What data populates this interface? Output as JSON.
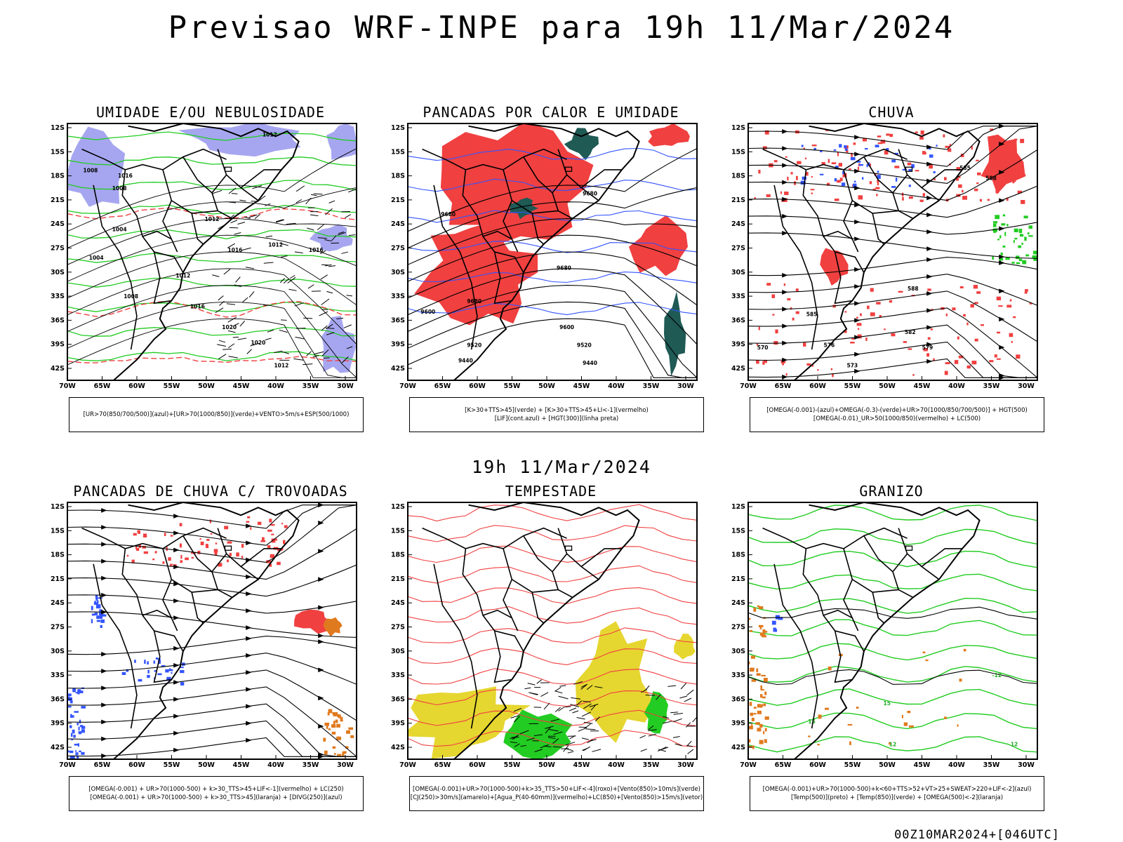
{
  "header": {
    "title": "Previsao WRF-INPE  para 19h 11/Mar/2024"
  },
  "mid_title": "19h 11/Mar/2024",
  "footer": "00Z10MAR2024+[046UTC]",
  "axes": {
    "lat_labels": [
      "12S",
      "15S",
      "18S",
      "21S",
      "24S",
      "27S",
      "30S",
      "33S",
      "36S",
      "39S",
      "42S"
    ],
    "lon_labels": [
      "70W",
      "65W",
      "60W",
      "55W",
      "50W",
      "45W",
      "40W",
      "35W",
      "30W"
    ]
  },
  "colors": {
    "red": "#f04040",
    "green": "#22cc22",
    "blue": "#3355ff",
    "lavender": "#a6a6f0",
    "dark_teal": "#1f5a55",
    "yellow": "#e6d630",
    "orange": "#e07a1e"
  },
  "panels": [
    {
      "title": "UMIDADE E/OU NEBULOSIDADE",
      "caption": [
        "[UR>70(850/700/500)](azul)+[UR>70(1000/850)](verde)+VENTO>5m/s+ESP(500/1000)"
      ],
      "contour_labels": [
        "1012",
        "1008",
        "1016",
        "1008",
        "1004",
        "1012",
        "1016",
        "1012",
        "1016",
        "1008",
        "1020",
        "1016",
        "1020",
        "1012",
        "1004",
        "1012"
      ]
    },
    {
      "title": "PANCADAS POR CALOR E UMIDADE",
      "caption": [
        "[K>30+TTS>45](verde) + [K>30+TTS>45+LI<-1](vermelho)",
        "[LIF](cont.azul) + [HGT(300)](linha preta)"
      ],
      "contour_labels": [
        "9680",
        "9680",
        "9680",
        "9680",
        "9600",
        "9600",
        "9520",
        "9520",
        "9440",
        "9440"
      ]
    },
    {
      "title": "CHUVA",
      "caption": [
        "[OMEGA(-0.001)-(azul)+OMEGA(-0.3)-(verde)+UR>70(1000/850/700/500)] + HGT(500)",
        "[OMEGA(-0.01)_UR>50(1000/850)(vermelho) + LC(500)"
      ],
      "contour_labels": [
        "585",
        "585",
        "588",
        "588",
        "582",
        "579",
        "576",
        "573",
        "570"
      ]
    },
    {
      "title": "PANCADAS DE CHUVA C/ TROVOADAS",
      "caption": [
        "[OMEGA(-0.001) + UR>70(1000-500) + k>30_TTS>45+LIF<-1](vermelho) + LC(250)",
        "[OMEGA(-0.001) + UR>70(1000-500) + k>30_TTS>45](laranja) + [DIVG(250)](azul)"
      ],
      "contour_labels": []
    },
    {
      "title": "TEMPESTADE",
      "caption": [
        "[OMEGA(-0.001)+UR>70(1000-500)+k>35_TTS>50+LIF<-4](roxo)+[Vento(850)>10m/s](verde)",
        "[CJ(250)>30m/s](amarelo)+[Agua_P(40-60mm)](vermelho)+LC(850)+[Vento(850)>15m/s](vetor)"
      ],
      "contour_labels": []
    },
    {
      "title": "GRANIZO",
      "caption": [
        "[OMEGA(-0.001)+UR>70(1000-500)+k<60+TTS>52+VT>25+SWEAT>220+LIF<-2](azul)",
        "[Temp(500)](preto) + [Temp(850)](verde) + [OMEGA(500)<-2](laranja)"
      ],
      "contour_labels": [
        "-12",
        "12",
        "15",
        "15",
        "12"
      ]
    }
  ]
}
